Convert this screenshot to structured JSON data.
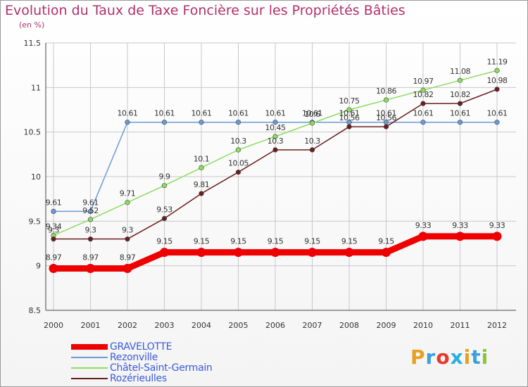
{
  "chart_data": {
    "type": "line",
    "title": "Evolution du Taux de Taxe Foncière sur les Propriétés Bâties",
    "subtitle": "(en %)",
    "categories": [
      "2000",
      "2001",
      "2002",
      "2003",
      "2004",
      "2005",
      "2006",
      "2007",
      "2008",
      "2009",
      "2010",
      "2011",
      "2012"
    ],
    "ylim": [
      8.5,
      11.5
    ],
    "yticks": [
      "8.5",
      "9",
      "9.5",
      "10",
      "10.5",
      "11",
      "11.5"
    ],
    "series": [
      {
        "name": "GRAVELOTTE",
        "color": "#ee0000",
        "thick": true,
        "values": [
          8.97,
          8.97,
          8.97,
          9.15,
          9.15,
          9.15,
          9.15,
          9.15,
          9.15,
          9.15,
          9.33,
          9.33,
          9.33
        ],
        "labels": [
          "8.97",
          "8.97",
          "8.97",
          "9.15",
          "9.15",
          "9.15",
          "9.15",
          "9.15",
          "9.15",
          "9.15",
          "9.33",
          "9.33",
          "9.33"
        ]
      },
      {
        "name": "Rezonville",
        "color": "#6a9bd6",
        "thick": false,
        "values": [
          9.61,
          9.61,
          10.61,
          10.61,
          10.61,
          10.61,
          10.61,
          10.61,
          10.61,
          10.61,
          10.61,
          10.61,
          10.61
        ],
        "labels": [
          "9.61",
          "9.61",
          "10.61",
          "10.61",
          "10.61",
          "10.61",
          "10.61",
          "10.61",
          "10.61",
          "10.61",
          "10.61",
          "10.61",
          "10.61"
        ]
      },
      {
        "name": "Châtel-Saint-Germain",
        "color": "#8ddc5e",
        "thick": false,
        "values": [
          9.34,
          9.52,
          9.71,
          9.9,
          10.1,
          10.3,
          10.45,
          10.6,
          10.75,
          10.86,
          10.97,
          11.08,
          11.19
        ],
        "labels": [
          "9.34",
          "9.52",
          "9.71",
          "9.9",
          "10.1",
          "10.3",
          "10.45",
          "10.6",
          "10.75",
          "10.86",
          "10.97",
          "11.08",
          "11.19"
        ]
      },
      {
        "name": "Rozérieulles",
        "color": "#6b1e1e",
        "thick": false,
        "values": [
          9.3,
          9.3,
          9.3,
          9.53,
          9.81,
          10.05,
          10.3,
          10.3,
          10.56,
          10.56,
          10.82,
          10.82,
          10.98
        ],
        "labels": [
          "9.3",
          "9.3",
          "9.3",
          "9.53",
          "9.81",
          "10.05",
          "10.3",
          "10.3",
          "10.56",
          "10.56",
          "10.82",
          "10.82",
          "10.98"
        ]
      }
    ]
  },
  "logo": {
    "text": "Proxiti",
    "colors": [
      "#e8a020",
      "#3aa0e0",
      "#e83a2a",
      "#28b0e0",
      "#e8a020",
      "#3aa0e0",
      "#8ac43a"
    ]
  }
}
